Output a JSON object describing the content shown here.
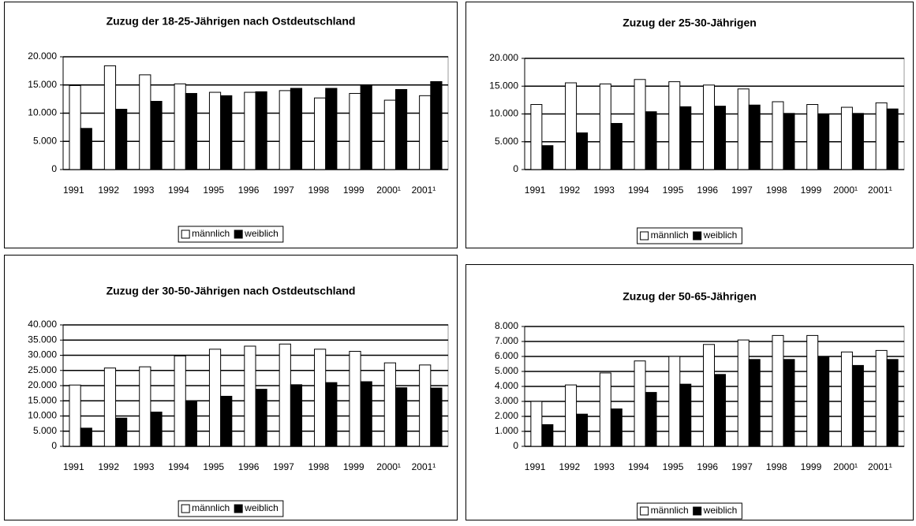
{
  "chart_data": [
    {
      "type": "bar",
      "title": "Zuzug der 18-25-Jährigen nach Ostdeutschland",
      "categories": [
        "1991",
        "1992",
        "1993",
        "1994",
        "1995",
        "1996",
        "1997",
        "1998",
        "1999",
        "2000¹",
        "2001¹"
      ],
      "series": [
        {
          "name": "männlich",
          "color": "#ffffff",
          "values": [
            14900,
            18400,
            16800,
            15200,
            13700,
            13700,
            14000,
            12700,
            13500,
            12300,
            13100
          ]
        },
        {
          "name": "weiblich",
          "color": "#000000",
          "values": [
            7300,
            10700,
            12100,
            13500,
            13100,
            13800,
            14400,
            14400,
            15000,
            14200,
            15600
          ]
        }
      ],
      "ylim": [
        0,
        20000
      ],
      "yticks": [
        0,
        {
          "value": 5000,
          "label": "5.000"
        },
        {
          "value": 10000,
          "label": "10.000"
        },
        {
          "value": 15000,
          "label": "15.000"
        },
        {
          "value": 20000,
          "label": "20.000"
        }
      ],
      "grid": true
    },
    {
      "type": "bar",
      "title": "Zuzug der 25-30-Jährigen",
      "categories": [
        "1991",
        "1992",
        "1993",
        "1994",
        "1995",
        "1996",
        "1997",
        "1998",
        "1999",
        "2000¹",
        "2001¹"
      ],
      "series": [
        {
          "name": "männlich",
          "color": "#ffffff",
          "values": [
            11700,
            15600,
            15400,
            16200,
            15800,
            15200,
            14500,
            12200,
            11700,
            11200,
            12000
          ]
        },
        {
          "name": "weiblich",
          "color": "#000000",
          "values": [
            4300,
            6600,
            8300,
            10400,
            11300,
            11400,
            11600,
            10100,
            10000,
            10100,
            10900
          ]
        }
      ],
      "ylim": [
        0,
        20000
      ],
      "yticks": [
        0,
        {
          "value": 5000,
          "label": "5.000"
        },
        {
          "value": 10000,
          "label": "10.000"
        },
        {
          "value": 15000,
          "label": "15.000"
        },
        {
          "value": 20000,
          "label": "20.000"
        }
      ],
      "grid": true
    },
    {
      "type": "bar",
      "title": "Zuzug der 30-50-Jährigen nach Ostdeutschland",
      "categories": [
        "1991",
        "1992",
        "1993",
        "1994",
        "1995",
        "1996",
        "1997",
        "1998",
        "1999",
        "2000¹",
        "2001¹"
      ],
      "series": [
        {
          "name": "männlich",
          "color": "#ffffff",
          "values": [
            20200,
            25800,
            26200,
            29800,
            32000,
            33000,
            33700,
            32000,
            31300,
            27500,
            26800
          ]
        },
        {
          "name": "weiblich",
          "color": "#000000",
          "values": [
            6000,
            9300,
            11300,
            15000,
            16500,
            18800,
            20300,
            21000,
            21300,
            19300,
            19200
          ]
        }
      ],
      "ylim": [
        0,
        40000
      ],
      "yticks": [
        0,
        {
          "value": 5000,
          "label": "5.000"
        },
        {
          "value": 10000,
          "label": "10.000"
        },
        {
          "value": 15000,
          "label": "15.000"
        },
        {
          "value": 20000,
          "label": "20.000"
        },
        {
          "value": 25000,
          "label": "25.000"
        },
        {
          "value": 30000,
          "label": "30.000"
        },
        {
          "value": 35000,
          "label": "35.000"
        },
        {
          "value": 40000,
          "label": "40.000"
        }
      ],
      "grid": true
    },
    {
      "type": "bar",
      "title": "Zuzug der 50-65-Jährigen",
      "categories": [
        "1991",
        "1992",
        "1993",
        "1994",
        "1995",
        "1996",
        "1997",
        "1998",
        "1999",
        "2000¹",
        "2001¹"
      ],
      "series": [
        {
          "name": "männlich",
          "color": "#ffffff",
          "values": [
            3000,
            4100,
            4900,
            5700,
            6000,
            6800,
            7100,
            7400,
            7400,
            6300,
            6400
          ]
        },
        {
          "name": "weiblich",
          "color": "#000000",
          "values": [
            1450,
            2150,
            2500,
            3600,
            4150,
            4800,
            5800,
            5800,
            6000,
            5400,
            5800
          ]
        }
      ],
      "ylim": [
        0,
        8000
      ],
      "yticks": [
        0,
        {
          "value": 1000,
          "label": "1.000"
        },
        {
          "value": 2000,
          "label": "2.000"
        },
        {
          "value": 3000,
          "label": "3.000"
        },
        {
          "value": 4000,
          "label": "4.000"
        },
        {
          "value": 5000,
          "label": "5.000"
        },
        {
          "value": 6000,
          "label": "6.000"
        },
        {
          "value": 7000,
          "label": "7.000"
        },
        {
          "value": 8000,
          "label": "8.000"
        }
      ],
      "grid": true
    }
  ]
}
